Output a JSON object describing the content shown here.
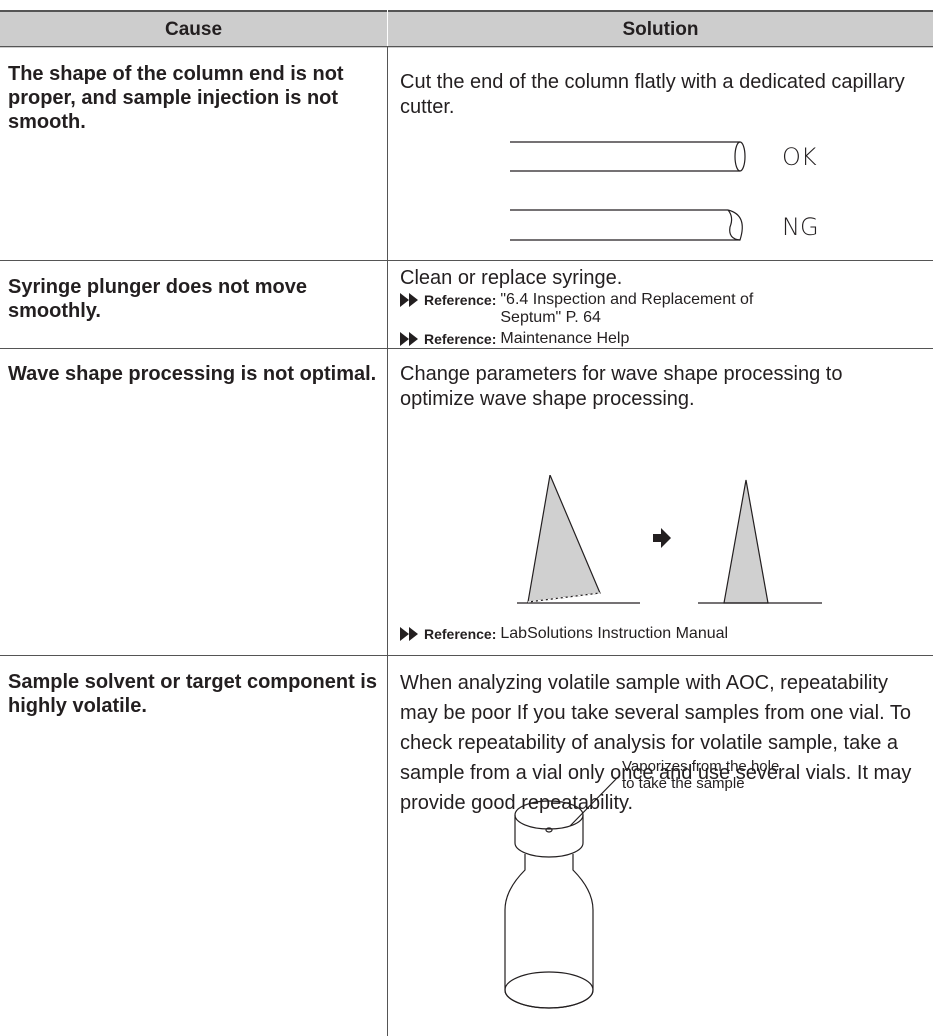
{
  "table": {
    "header": [
      "Cause",
      "Solution"
    ],
    "rows": [
      {
        "cause": "The shape of the column end is not proper, and sample injection is not smooth.",
        "solution": "Cut the end of the column flatly with a dedicated capillary cutter.",
        "figure_labels": [
          "OK",
          "NG"
        ]
      },
      {
        "cause": "Syringe plunger does not move smoothly.",
        "solution": "Clean or replace syringe.",
        "references": [
          {
            "label": "Reference:",
            "text": "\"6.4 Inspection and Replacement of Septum\" P. 64"
          },
          {
            "label": "Reference:",
            "text": "Maintenance Help"
          }
        ]
      },
      {
        "cause": "Wave shape processing is not optimal.",
        "solution": "Change parameters for wave shape processing to optimize wave shape processing.",
        "references": [
          {
            "label": "Reference:",
            "text": "LabSolutions Instruction Manual"
          }
        ]
      },
      {
        "cause": "Sample solvent or target component is highly volatile.",
        "solution": "When analyzing volatile sample with AOC, repeatability may be poor If you take several samples from one vial. To check repeatability of analysis for volatile sample, take a sample from a vial only once and use several vials. It may provide good repeatability.",
        "figure_note": "Vaporizes from the hole to take the sample"
      }
    ]
  }
}
